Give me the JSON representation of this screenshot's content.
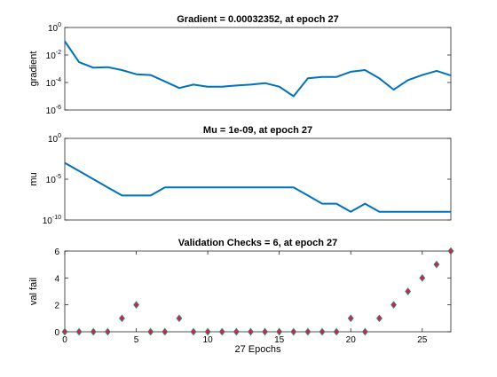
{
  "chart_data": [
    {
      "type": "line",
      "title": "Gradient = 0.00032352, at epoch 27",
      "ylabel": "gradient",
      "xlabel": "",
      "yscale": "log",
      "xlim": [
        0,
        27
      ],
      "ylim_exp": [
        -6,
        0
      ],
      "y_tick_exponents": [
        -6,
        -4,
        -2,
        0
      ],
      "x": [
        0,
        1,
        2,
        3,
        4,
        5,
        6,
        7,
        8,
        9,
        10,
        11,
        12,
        13,
        14,
        15,
        16,
        17,
        18,
        19,
        20,
        21,
        22,
        23,
        24,
        25,
        26,
        27
      ],
      "series": [
        {
          "color": "#0072BD",
          "values": [
            0.1,
            0.003,
            0.0012,
            0.0013,
            0.0008,
            0.0004,
            0.00035,
            0.00012,
            4e-05,
            7e-05,
            5e-05,
            5e-05,
            6e-05,
            7e-05,
            9e-05,
            5e-05,
            1e-05,
            0.0002,
            0.00025,
            0.00025,
            0.0006,
            0.0008,
            0.0002,
            3e-05,
            0.00015,
            0.00035,
            0.0007,
            0.00032352
          ]
        }
      ],
      "grid": false
    },
    {
      "type": "line",
      "title": "Mu = 1e-09, at epoch 27",
      "ylabel": "mu",
      "xlabel": "",
      "yscale": "log",
      "xlim": [
        0,
        27
      ],
      "ylim_exp": [
        -10,
        0
      ],
      "y_tick_exponents": [
        -10,
        -5,
        0
      ],
      "x": [
        0,
        1,
        2,
        3,
        4,
        5,
        6,
        7,
        8,
        9,
        10,
        11,
        12,
        13,
        14,
        15,
        16,
        17,
        18,
        19,
        20,
        21,
        22,
        23,
        24,
        25,
        26,
        27
      ],
      "series": [
        {
          "color": "#0072BD",
          "values": [
            0.001,
            0.0001,
            1e-05,
            1e-06,
            1e-07,
            1e-07,
            1e-07,
            1e-06,
            1e-06,
            1e-06,
            1e-06,
            1e-06,
            1e-06,
            1e-06,
            1e-06,
            1e-06,
            1e-06,
            1e-07,
            1e-08,
            1e-08,
            1e-09,
            1e-08,
            1e-09,
            1e-09,
            1e-09,
            1e-09,
            1e-09,
            1e-09
          ]
        }
      ],
      "grid": false
    },
    {
      "type": "scatter",
      "title": "Validation Checks = 6, at epoch 27",
      "ylabel": "val fail",
      "xlabel": "27 Epochs",
      "xlim": [
        0,
        27
      ],
      "ylim": [
        0,
        6
      ],
      "x_ticks": [
        0,
        5,
        10,
        15,
        20,
        25
      ],
      "y_ticks": [
        0,
        2,
        4,
        6
      ],
      "x": [
        0,
        1,
        2,
        3,
        4,
        5,
        6,
        7,
        8,
        9,
        10,
        11,
        12,
        13,
        14,
        15,
        16,
        17,
        18,
        19,
        20,
        21,
        22,
        23,
        24,
        25,
        26,
        27
      ],
      "series": [
        {
          "marker": "diamond",
          "marker_fill": "#D81B60",
          "marker_edge": "#2E8B57",
          "values": [
            0,
            0,
            0,
            0,
            1,
            2,
            0,
            0,
            1,
            0,
            0,
            0,
            0,
            0,
            0,
            0,
            0,
            0,
            0,
            0,
            1,
            0,
            1,
            2,
            3,
            4,
            5,
            6
          ]
        }
      ],
      "grid": false
    }
  ]
}
